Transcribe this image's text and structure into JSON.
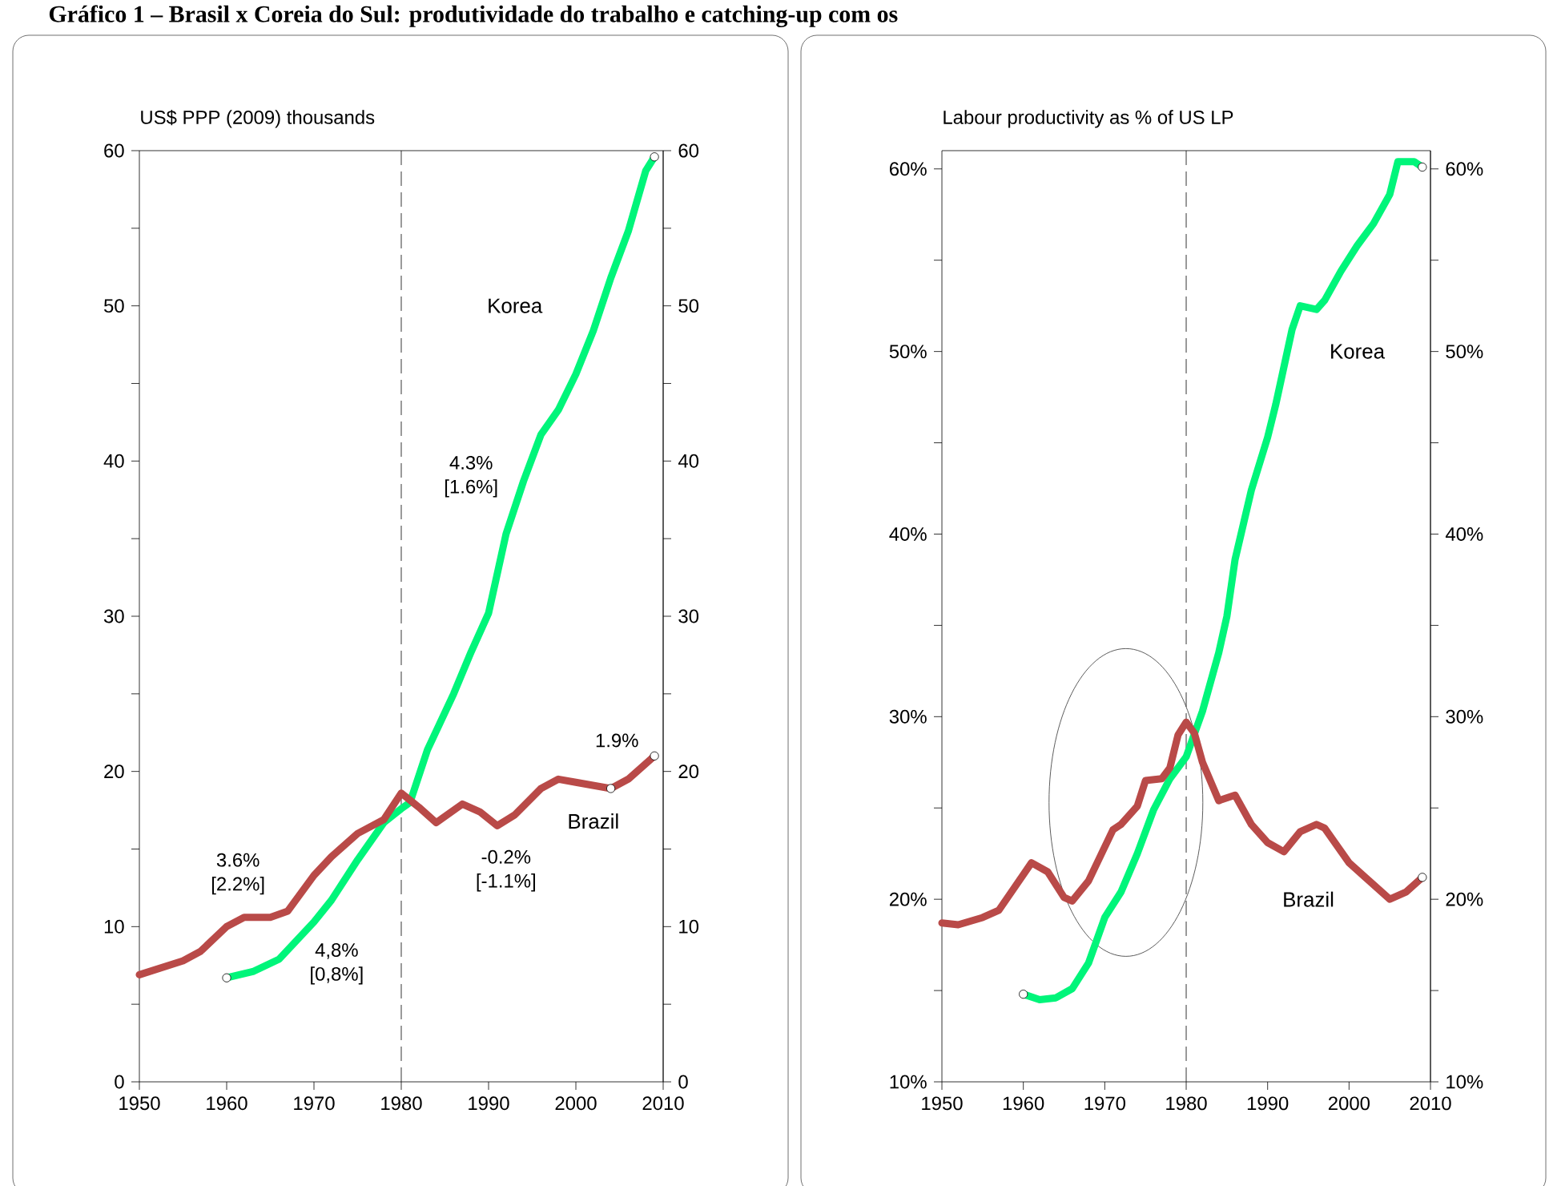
{
  "chart_data": [
    {
      "type": "line",
      "title": "Gráfico 1 – Brasil x Coreia do Sul: produtividade do trabalho e catching-up com os",
      "ylabel": "US$ PPP (2009) thousands",
      "xlim": [
        1950,
        2010
      ],
      "xticks": [
        1950,
        1960,
        1970,
        1980,
        1990,
        2000,
        2010
      ],
      "ylim": [
        0,
        60
      ],
      "yticks": [
        0,
        {
          "value": 5,
          "label": null
        },
        10,
        {
          "value": 15,
          "label": null
        },
        20,
        {
          "value": 25,
          "label": null
        },
        30,
        {
          "value": 35,
          "label": null
        },
        40,
        {
          "value": 45,
          "label": null
        },
        50,
        {
          "value": 55,
          "label": null
        },
        60
      ],
      "y2lim": [
        0,
        60
      ],
      "y2ticks": [
        0,
        {
          "value": 5,
          "label": null
        },
        10,
        {
          "value": 15,
          "label": null
        },
        20,
        {
          "value": 25,
          "label": null
        },
        30,
        {
          "value": 35,
          "label": null
        },
        40,
        {
          "value": 45,
          "label": null
        },
        50,
        {
          "value": 55,
          "label": null
        },
        60
      ],
      "line_style": "solid",
      "ref_lines": [
        {
          "axis": "x",
          "value": 1980,
          "line_style": "dashed",
          "color": "#000000"
        }
      ],
      "annotations": [
        "4.3% [1.6%]",
        "3.6% [2.2%]",
        "4,8% [0,8%]",
        "-0.2% [-1.1%]",
        "1.9%"
      ],
      "series": [
        {
          "name": "Korea",
          "color": "#00f57a",
          "x": [
            1960,
            1963,
            1966,
            1968,
            1970,
            1972,
            1975,
            1978,
            1980,
            1981,
            1983,
            1986,
            1988,
            1990,
            1992,
            1994,
            1996,
            1998,
            2000,
            2002,
            2004,
            2006,
            2008,
            2009
          ],
          "values": [
            6.7,
            7.1,
            7.9,
            9.1,
            10.3,
            11.7,
            14.3,
            16.7,
            17.6,
            18.0,
            21.4,
            25.0,
            27.7,
            30.2,
            35.3,
            38.7,
            41.7,
            43.3,
            45.6,
            48.4,
            51.8,
            54.8,
            58.7,
            59.6
          ]
        },
        {
          "name": "Brazil",
          "color": "#b94a48",
          "x": [
            1950,
            1955,
            1957,
            1960,
            1962,
            1965,
            1967,
            1970,
            1972,
            1975,
            1978,
            1980,
            1982,
            1984,
            1987,
            1989,
            1991,
            1993,
            1996,
            1998,
            2000,
            2004,
            2006,
            2009
          ],
          "values": [
            6.9,
            7.8,
            8.4,
            10.0,
            10.6,
            10.6,
            11.0,
            13.3,
            14.5,
            16.0,
            16.9,
            18.6,
            17.7,
            16.7,
            17.9,
            17.4,
            16.5,
            17.2,
            18.9,
            19.5,
            19.3,
            18.9,
            19.5,
            21.0
          ]
        },
        {
          "type": "scatter",
          "marker": "circle",
          "color": "#ffffff",
          "x": [
            1960,
            2009,
            2004,
            2009
          ],
          "values": [
            6.7,
            59.6,
            18.9,
            21.0
          ]
        }
      ]
    },
    {
      "type": "line",
      "ylabel": "Labour productivity as % of US LP",
      "xlim": [
        1950,
        2010
      ],
      "xticks": [
        1950,
        1960,
        1970,
        1980,
        1990,
        2000,
        2010
      ],
      "ylim": [
        10,
        61
      ],
      "yticks": [
        {
          "value": 10,
          "label": "10%"
        },
        {
          "value": 15,
          "label": null
        },
        {
          "value": 20,
          "label": "20%"
        },
        {
          "value": 25,
          "label": null
        },
        {
          "value": 30,
          "label": "30%"
        },
        {
          "value": 35,
          "label": null
        },
        {
          "value": 40,
          "label": "40%"
        },
        {
          "value": 45,
          "label": null
        },
        {
          "value": 50,
          "label": "50%"
        },
        {
          "value": 55,
          "label": null
        },
        {
          "value": 60,
          "label": "60%"
        }
      ],
      "y2lim": [
        10,
        61
      ],
      "y2ticks": [
        {
          "value": 10,
          "label": "10%"
        },
        {
          "value": 15,
          "label": null
        },
        {
          "value": 20,
          "label": "20%"
        },
        {
          "value": 25,
          "label": null
        },
        {
          "value": 30,
          "label": "30%"
        },
        {
          "value": 35,
          "label": null
        },
        {
          "value": 40,
          "label": "40%"
        },
        {
          "value": 45,
          "label": null
        },
        {
          "value": 50,
          "label": "50%"
        },
        {
          "value": 55,
          "label": null
        },
        {
          "value": 60,
          "label": "60%"
        }
      ],
      "line_style": "solid",
      "ref_lines": [
        {
          "axis": "x",
          "value": 1980,
          "line_style": "dashed",
          "color": "#000000"
        }
      ],
      "series": [
        {
          "name": "Korea",
          "color": "#00f57a",
          "x": [
            1960,
            1962,
            1964,
            1966,
            1968,
            1970,
            1972,
            1974,
            1976,
            1978,
            1980,
            1982,
            1984,
            1985,
            1986,
            1988,
            1990,
            1991,
            1993,
            1994,
            1996,
            1997,
            1999,
            2001,
            2003,
            2005,
            2006,
            2008,
            2009
          ],
          "values": [
            14.8,
            14.5,
            14.6,
            15.1,
            16.5,
            19.0,
            20.4,
            22.5,
            24.9,
            26.6,
            27.8,
            30.3,
            33.5,
            35.5,
            38.6,
            42.4,
            45.3,
            47.1,
            51.2,
            52.5,
            52.3,
            52.8,
            54.4,
            55.8,
            57.0,
            58.6,
            60.4,
            60.4,
            60.1
          ]
        },
        {
          "name": "Brazil",
          "color": "#b94a48",
          "x": [
            1950,
            1952,
            1955,
            1957,
            1959,
            1961,
            1963,
            1965,
            1966,
            1968,
            1971,
            1972,
            1974,
            1975,
            1977,
            1978,
            1979,
            1980,
            1981,
            1982,
            1984,
            1986,
            1988,
            1990,
            1992,
            1994,
            1996,
            1997,
            2000,
            2002,
            2005,
            2007,
            2009
          ],
          "values": [
            18.7,
            18.6,
            19.0,
            19.4,
            20.7,
            22.0,
            21.5,
            20.1,
            19.9,
            21.0,
            23.8,
            24.1,
            25.1,
            26.5,
            26.6,
            27.2,
            29.0,
            29.7,
            29.1,
            27.5,
            25.4,
            25.7,
            24.1,
            23.1,
            22.6,
            23.7,
            24.1,
            23.9,
            22.0,
            21.2,
            20.0,
            20.4,
            21.2
          ]
        },
        {
          "type": "scatter",
          "marker": "circle",
          "color": "#ffffff",
          "x": [
            1960,
            2009,
            2009
          ],
          "values": [
            14.8,
            60.1,
            21.2
          ]
        }
      ]
    }
  ]
}
